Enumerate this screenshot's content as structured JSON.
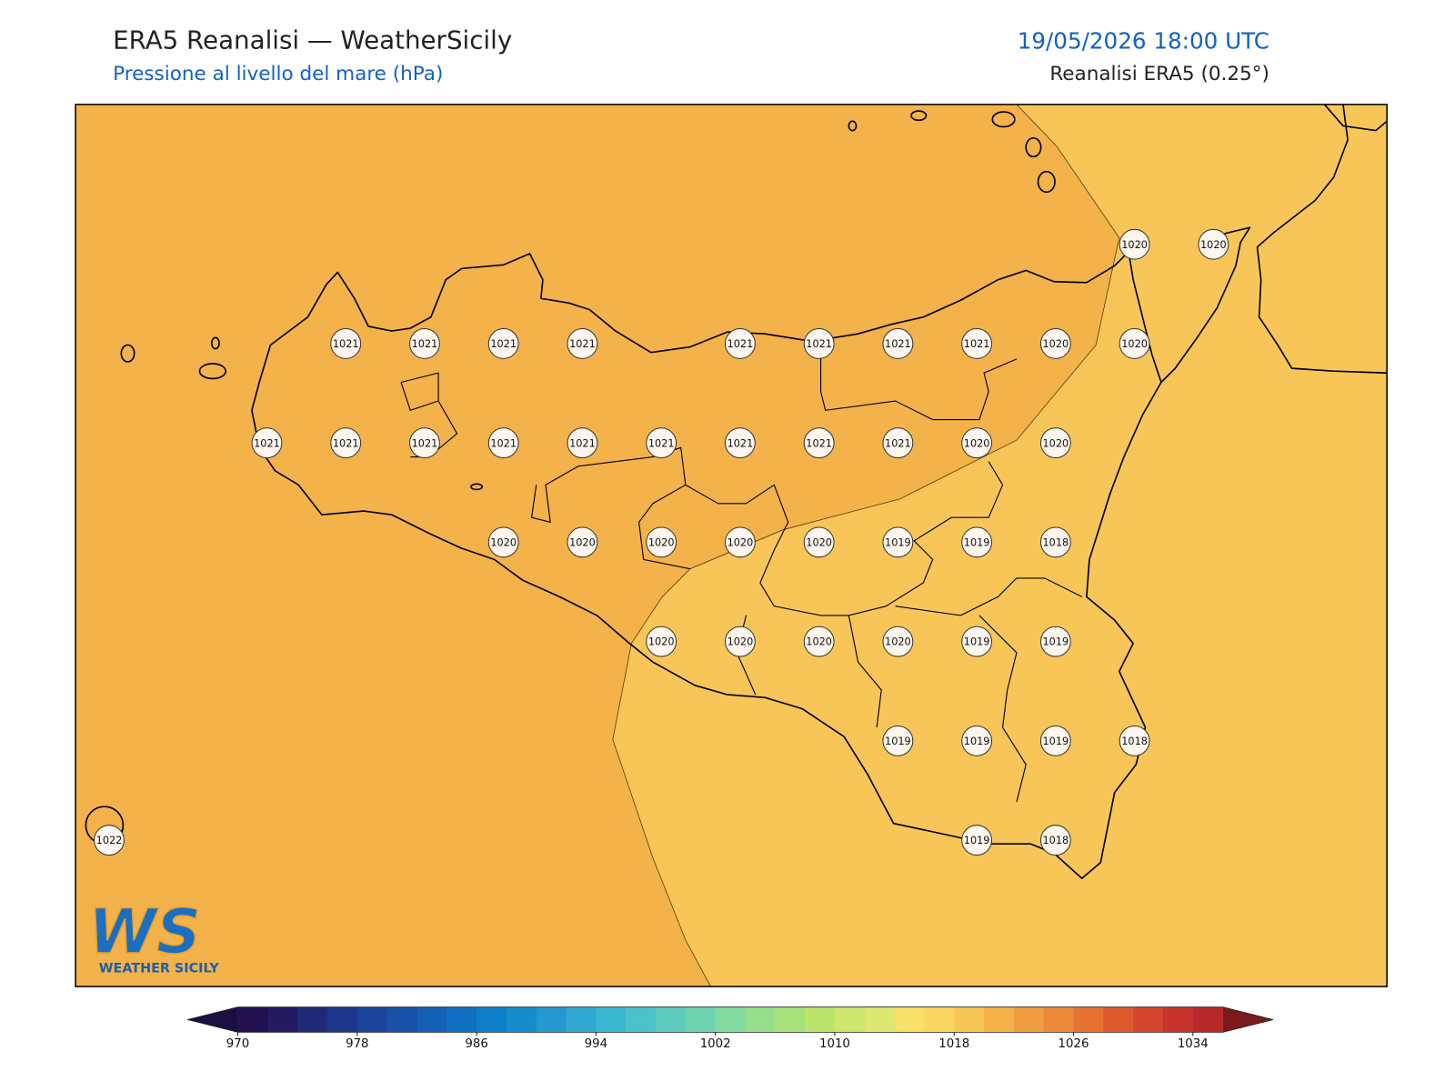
{
  "header": {
    "title": "ERA5 Reanalisi — WeatherSicily",
    "subtitle": "Pressione al livello del mare (hPa)",
    "valid_time": "19/05/2026 18:00 UTC",
    "source": "Reanalisi ERA5 (0.25°)"
  },
  "stations": {
    "values": [
      1020,
      1020,
      1021,
      1021,
      1021,
      1021,
      1021,
      1021,
      1021,
      1021,
      1020,
      1020,
      1021,
      1021,
      1021,
      1021,
      1021,
      1021,
      1021,
      1021,
      1021,
      1020,
      1020,
      1020,
      1020,
      1020,
      1020,
      1020,
      1019,
      1019,
      1018,
      1020,
      1020,
      1020,
      1020,
      1019,
      1019,
      1019,
      1019,
      1019,
      1018,
      1022,
      1019,
      1018
    ]
  },
  "colorbar": {
    "levels": [
      970,
      972,
      974,
      976,
      978,
      980,
      982,
      984,
      986,
      988,
      990,
      992,
      994,
      996,
      998,
      1000,
      1002,
      1004,
      1006,
      1008,
      1010,
      1012,
      1014,
      1016,
      1018,
      1020,
      1022,
      1024,
      1026,
      1028,
      1030,
      1032,
      1034,
      1036
    ],
    "colors": [
      "#221150",
      "#241a63",
      "#1f2a78",
      "#1c368a",
      "#1b449c",
      "#1851a8",
      "#1460b5",
      "#0f6fc0",
      "#0e7fc9",
      "#168ccd",
      "#2499cf",
      "#31a9d2",
      "#3ab8d2",
      "#4bc2c9",
      "#5ecbbf",
      "#6ed4b0",
      "#84db9f",
      "#95df8c",
      "#a7e27a",
      "#bbe46c",
      "#cce66e",
      "#dce872",
      "#f8e06a",
      "#fbd561",
      "#f8c658",
      "#f4b24a",
      "#f09e40",
      "#ec8a39",
      "#e67232",
      "#de5a2e",
      "#d4452c",
      "#c8332b",
      "#b8282a"
    ],
    "under_color": "#1b0e40",
    "over_color": "#7a1a1a",
    "ticks": [
      970,
      978,
      986,
      994,
      1002,
      1010,
      1018,
      1026,
      1034
    ]
  },
  "logo": {
    "mark": "WS",
    "name": "WEATHER SICILY"
  }
}
